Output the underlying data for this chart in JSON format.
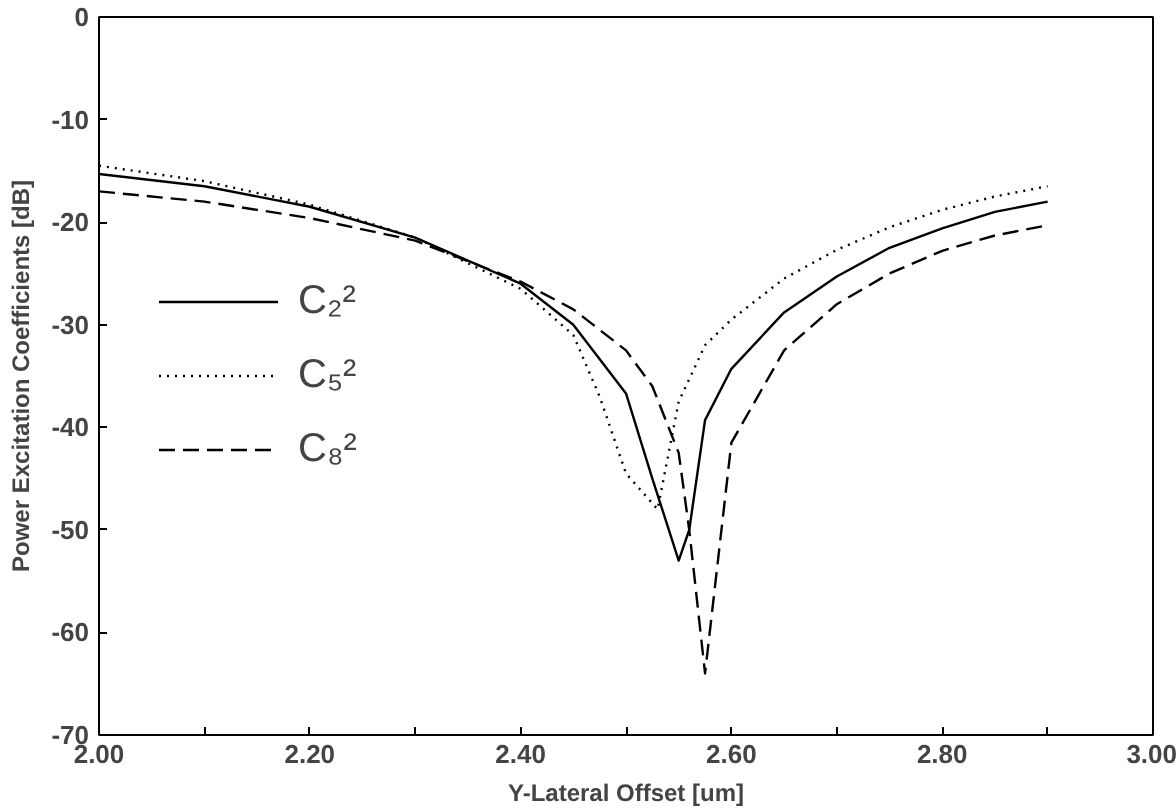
{
  "chart_data": {
    "type": "line",
    "xlabel": "Y-Lateral Offset [um]",
    "ylabel": "Power Excitation Coefficients [dB]",
    "xlim": [
      2.0,
      3.0
    ],
    "ylim": [
      -70,
      0
    ],
    "xticks": [
      {
        "value": 2.0,
        "label": "2.00"
      },
      {
        "value": 2.1,
        "label": null
      },
      {
        "value": 2.2,
        "label": "2.20"
      },
      {
        "value": 2.3,
        "label": null
      },
      {
        "value": 2.4,
        "label": "2.40"
      },
      {
        "value": 2.5,
        "label": null
      },
      {
        "value": 2.6,
        "label": "2.60"
      },
      {
        "value": 2.7,
        "label": null
      },
      {
        "value": 2.8,
        "label": "2.80"
      },
      {
        "value": 2.9,
        "label": null
      },
      {
        "value": 3.0,
        "label": "3.00"
      }
    ],
    "yticks": [
      0,
      -10,
      -20,
      -30,
      -40,
      -50,
      -60,
      -70
    ],
    "grid": false,
    "legend": "left",
    "marker": "none",
    "series": [
      {
        "name": "C₂²",
        "color": "#000000",
        "line_style": "solid",
        "x": [
          2.0,
          2.1,
          2.2,
          2.3,
          2.4,
          2.45,
          2.5,
          2.525,
          2.55,
          2.56,
          2.575,
          2.6,
          2.65,
          2.7,
          2.75,
          2.8,
          2.85,
          2.9
        ],
        "values": [
          -15.3,
          -16.5,
          -18.5,
          -21.5,
          -26,
          -30,
          -36.7,
          -45,
          -53,
          -50,
          -39.3,
          -34.3,
          -28.8,
          -25.3,
          -22.5,
          -20.6,
          -19,
          -18
        ]
      },
      {
        "name": "C₅²",
        "color": "#000000",
        "line_style": "dotted",
        "x": [
          2.0,
          2.1,
          2.2,
          2.3,
          2.4,
          2.45,
          2.475,
          2.5,
          2.53,
          2.55,
          2.575,
          2.6,
          2.65,
          2.7,
          2.75,
          2.8,
          2.85,
          2.9
        ],
        "values": [
          -14.5,
          -16,
          -18.3,
          -21.5,
          -26.5,
          -31,
          -37,
          -44.5,
          -48,
          -37.5,
          -32,
          -29.5,
          -25.5,
          -22.7,
          -20.5,
          -18.8,
          -17.5,
          -16.5
        ]
      },
      {
        "name": "C₈²",
        "color": "#000000",
        "line_style": "dashed",
        "x": [
          2.0,
          2.1,
          2.2,
          2.3,
          2.4,
          2.45,
          2.5,
          2.525,
          2.55,
          2.56,
          2.575,
          2.6,
          2.65,
          2.7,
          2.75,
          2.8,
          2.85,
          2.9
        ],
        "values": [
          -17,
          -18,
          -19.6,
          -21.8,
          -25.8,
          -28.5,
          -32.5,
          -36,
          -42.5,
          -50,
          -64,
          -41.5,
          -32.5,
          -28,
          -25,
          -22.8,
          -21.3,
          -20.3
        ]
      }
    ]
  }
}
